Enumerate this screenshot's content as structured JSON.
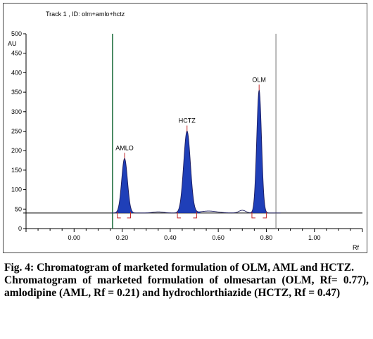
{
  "track_title": "Track 1 , ID: olm+amlo+hctz",
  "caption": {
    "figure_label": "Fig. 4:",
    "figure_title": "Chromatogram of marketed formulation of OLM, AML and HCTZ.",
    "description": "Chromatogram of marketed formulation of olmesartan (OLM, Rf= 0.77), amlodipine (AML, Rf = 0.21) and hydrochlorthiazide (HCTZ, Rf = 0.47)"
  },
  "chart_data": {
    "type": "line",
    "title": "Track 1 , ID: olm+amlo+hctz",
    "xlabel": "Rf",
    "ylabel": "AU",
    "xlim": [
      -0.2,
      1.2
    ],
    "ylim": [
      0,
      500
    ],
    "x_ticks": [
      "0.00",
      "0.20",
      "0.40",
      "0.60",
      "0.80",
      "1.00"
    ],
    "y_ticks": [
      "0",
      "50",
      "100",
      "150",
      "200",
      "250",
      "300",
      "350",
      "400",
      "450",
      "500"
    ],
    "baseline": 40,
    "start_marker_rf": 0.16,
    "end_marker_rf": 0.84,
    "peaks": [
      {
        "label": "AMLO",
        "rf": 0.21,
        "height": 180,
        "width": 0.012,
        "start": 0.18,
        "end": 0.235
      },
      {
        "label": "HCTZ",
        "rf": 0.47,
        "height": 250,
        "width": 0.014,
        "start": 0.43,
        "end": 0.51
      },
      {
        "label": "OLM",
        "rf": 0.77,
        "height": 355,
        "width": 0.01,
        "start": 0.74,
        "end": 0.8
      }
    ],
    "colors": {
      "peak_fill": "#1f3fb8",
      "start_marker": "#1a6b3a",
      "end_marker": "#888888",
      "peak_top": "#c0282a"
    }
  }
}
